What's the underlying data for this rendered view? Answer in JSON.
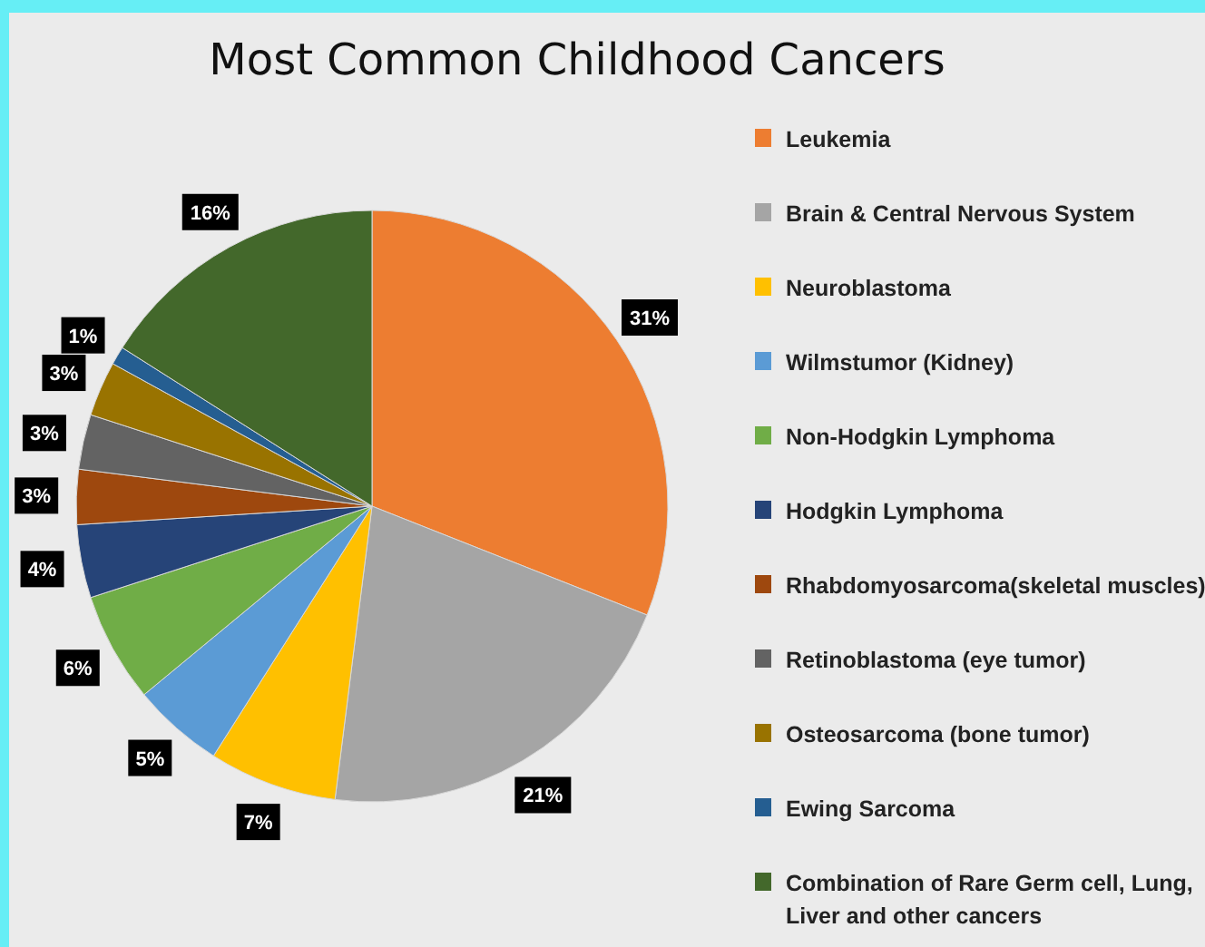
{
  "chart_data": {
    "type": "pie",
    "title": "Most Common Childhood Cancers",
    "categories": [
      "Leukemia",
      "Brain & Central Nervous System",
      "Neuroblastoma",
      "Wilmstumor (Kidney)",
      "Non-Hodgkin Lymphoma",
      "Hodgkin Lymphoma",
      "Rhabdomyosarcoma(skeletal muscles)",
      "Retinoblastoma (eye tumor)",
      "Osteosarcoma (bone tumor)",
      "Ewing Sarcoma",
      "Combination of Rare Germ cell, Lung, Liver and other cancers"
    ],
    "values": [
      31,
      21,
      7,
      5,
      6,
      4,
      3,
      3,
      3,
      1,
      16
    ],
    "colors": [
      "#ed7d31",
      "#a5a5a5",
      "#ffc000",
      "#5b9bd5",
      "#70ad47",
      "#264478",
      "#9e480e",
      "#636363",
      "#997300",
      "#255e91",
      "#43682b"
    ],
    "value_labels": [
      "31%",
      "21%",
      "7%",
      "5%",
      "6%",
      "4%",
      "3%",
      "3%",
      "3%",
      "1%",
      "16%"
    ],
    "legend": "right"
  }
}
